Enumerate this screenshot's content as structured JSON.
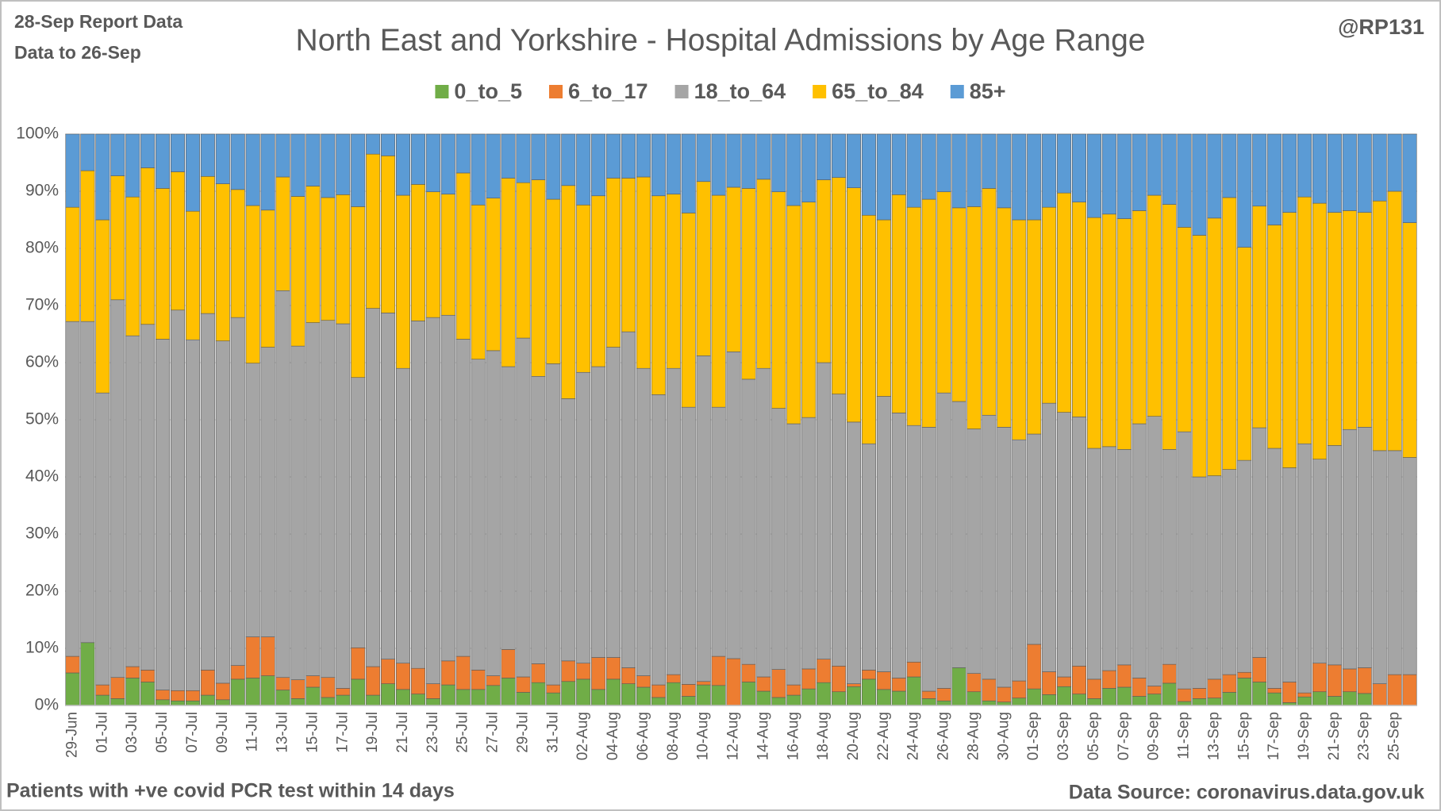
{
  "chart_data": {
    "type": "stacked_bar_100",
    "title": "North East and Yorkshire - Hospital Admissions by Age Range",
    "report_note": "28-Sep Report Data",
    "data_note": "Data to 26-Sep",
    "author": "@RP131",
    "footnote": "Patients with  +ve covid PCR test within 14 days",
    "source": "Data Source: coronavirus.data.gov.uk",
    "categories": [
      "29-Jun",
      null,
      "01-Jul",
      null,
      "03-Jul",
      null,
      "05-Jul",
      null,
      "07-Jul",
      null,
      "09-Jul",
      null,
      "11-Jul",
      null,
      "13-Jul",
      null,
      "15-Jul",
      null,
      "17-Jul",
      null,
      "19-Jul",
      null,
      "21-Jul",
      null,
      "23-Jul",
      null,
      "25-Jul",
      null,
      "27-Jul",
      null,
      "29-Jul",
      null,
      "31-Jul",
      null,
      "02-Aug",
      null,
      "04-Aug",
      null,
      "06-Aug",
      null,
      "08-Aug",
      null,
      "10-Aug",
      null,
      "12-Aug",
      null,
      "14-Aug",
      null,
      "16-Aug",
      null,
      "18-Aug",
      null,
      "20-Aug",
      null,
      "22-Aug",
      null,
      "24-Aug",
      null,
      "26-Aug",
      null,
      "28-Aug",
      null,
      "30-Aug",
      null,
      "01-Sep",
      null,
      "03-Sep",
      null,
      "05-Sep",
      null,
      "07-Sep",
      null,
      "09-Sep",
      null,
      "11-Sep",
      null,
      "13-Sep",
      null,
      "15-Sep",
      null,
      "17-Sep",
      null,
      "19-Sep",
      null,
      "21-Sep",
      null,
      "23-Sep",
      null,
      "25-Sep",
      null
    ],
    "series": [
      {
        "name": "0_to_5",
        "color": "#70ad47",
        "values": [
          5.7,
          11,
          1.8,
          1.2,
          4.8,
          4.1,
          1,
          0.8,
          0.8,
          1.8,
          1,
          4.6,
          4.8,
          5.2,
          2.7,
          1.2,
          3.2,
          1.4,
          1.8,
          4.6,
          1.8,
          3.8,
          2.8,
          2,
          1.2,
          3.6,
          2.8,
          2.8,
          3.5,
          4.8,
          2.3,
          4,
          2.2,
          4.2,
          4.6,
          2.8,
          4.6,
          3.8,
          3.2,
          1.4,
          4,
          1.6,
          3.6,
          3.5,
          0,
          4.1,
          2.5,
          1.4,
          1.8,
          2.9,
          4,
          2.4,
          3.3,
          4.6,
          2.8,
          2.5,
          5,
          1.2,
          0.8,
          6.6,
          2.4,
          0.8,
          0.6,
          1.3,
          2.9,
          1.9,
          3.3,
          2,
          1.2,
          3,
          3.2,
          1.6,
          2,
          3.9,
          0.7,
          1.2,
          1.3,
          2.3,
          4.8,
          4.1,
          2.2,
          0.5,
          1.5,
          2.4,
          1.6,
          2.4,
          2.1,
          0,
          0,
          0
        ]
      },
      {
        "name": "6_to_17",
        "color": "#ed7d31",
        "values": [
          2.9,
          0,
          1.8,
          3.7,
          2,
          2.1,
          1.7,
          1.8,
          1.8,
          4.4,
          2.9,
          2.4,
          7.2,
          6.8,
          2.2,
          3.3,
          2,
          3.5,
          1.2,
          5.5,
          5,
          4.3,
          4.6,
          4.5,
          2.6,
          4.2,
          5.8,
          3.4,
          1.7,
          5,
          2.7,
          3.3,
          1.4,
          3.6,
          2.8,
          5.6,
          3.8,
          2.8,
          2,
          2.2,
          1.4,
          2.1,
          0.6,
          5.1,
          8.2,
          3.1,
          2.5,
          4.9,
          1.8,
          3.5,
          4.1,
          4.5,
          0.5,
          1.6,
          3.1,
          2.3,
          2.6,
          1.3,
          2.2,
          0,
          3.2,
          3.8,
          2.6,
          3,
          7.8,
          4,
          1.7,
          4.9,
          3.4,
          3.1,
          3.9,
          3.2,
          1.4,
          3.3,
          2.2,
          1.8,
          3.3,
          3.1,
          1,
          4.3,
          0.8,
          3.6,
          0.7,
          5,
          5.5,
          4,
          4.5,
          3.8,
          5.4,
          5.4
        ]
      },
      {
        "name": "18_to_64",
        "color": "#a5a5a5",
        "values": [
          58.6,
          56.2,
          51.1,
          66.1,
          57.9,
          60.5,
          61.4,
          66.6,
          61.4,
          62.4,
          59.9,
          60.9,
          47.9,
          50.7,
          67.7,
          58.4,
          61.8,
          62.5,
          63.8,
          47.3,
          62.7,
          60.6,
          51.6,
          60.8,
          64.1,
          60.5,
          55.5,
          54.4,
          56.9,
          49.5,
          59.3,
          50.3,
          56.2,
          45.9,
          50.9,
          50.9,
          54.3,
          58.8,
          53.8,
          50.8,
          53.6,
          48.5,
          57,
          43.6,
          53.7,
          49.9,
          54,
          45.7,
          45.7,
          44,
          51.9,
          47.6,
          45.8,
          39.6,
          48.2,
          46.4,
          41.4,
          46.2,
          51.7,
          46.6,
          42.8,
          46.2,
          45.5,
          42.2,
          36.8,
          47,
          46.3,
          43.6,
          40.4,
          39.2,
          37.7,
          44.5,
          47.2,
          37.6,
          45,
          37,
          35.6,
          35.9,
          37.1,
          40.2,
          42,
          37.5,
          43.6,
          35.7,
          38.4,
          41.9,
          42.1,
          40.8,
          39.2,
          38
        ]
      },
      {
        "name": "65_to_84",
        "color": "#ffc000",
        "values": [
          20,
          26.4,
          30.3,
          21.7,
          24.3,
          27.4,
          26.4,
          24.2,
          22.5,
          24,
          27.5,
          22.4,
          27.6,
          24,
          19.9,
          26.2,
          23.9,
          21.5,
          22.6,
          29.9,
          27,
          27.5,
          30.3,
          23.9,
          22,
          21.2,
          29.1,
          27,
          26.7,
          33,
          27.2,
          34.4,
          28.8,
          37.3,
          29.3,
          29.9,
          29.6,
          26.9,
          33.5,
          34.8,
          30.5,
          34,
          30.5,
          37.1,
          28.8,
          33.4,
          33.1,
          37.9,
          38.2,
          37.7,
          32,
          37.9,
          41,
          40,
          30.9,
          38.2,
          38.2,
          39.9,
          35.2,
          33.9,
          38.9,
          39.7,
          38.4,
          38.5,
          37.5,
          34.3,
          38.4,
          37.6,
          40.4,
          40.7,
          40.4,
          37.3,
          38.7,
          42.9,
          35.8,
          42.3,
          45.1,
          47.6,
          37.3,
          38.8,
          39.1,
          44.7,
          43.2,
          44.8,
          40.8,
          38.3,
          37.6,
          43.7,
          45.4,
          41.1
        ]
      },
      {
        "name": "85+",
        "color": "#5b9bd5",
        "values": [
          12.8,
          6.4,
          15,
          7.3,
          11,
          5.9,
          9.5,
          6.6,
          13.5,
          7.4,
          8.7,
          9.7,
          12.5,
          13.3,
          7.5,
          10.9,
          9.1,
          11.1,
          10.6,
          12.7,
          3.5,
          3.8,
          10.7,
          8.8,
          10.1,
          10.5,
          6.8,
          12.4,
          11.2,
          7.7,
          8.5,
          8,
          11.4,
          9,
          12.4,
          10.8,
          7.7,
          7.7,
          7.5,
          10.8,
          10.5,
          13.8,
          8.3,
          10.7,
          9.3,
          9.5,
          7.9,
          10.1,
          12.5,
          11.9,
          8,
          7.6,
          9.4,
          14.2,
          15,
          10.6,
          12.8,
          11.4,
          10.1,
          12.9,
          12.7,
          9.5,
          12.9,
          15,
          15,
          12.8,
          10.3,
          11.9,
          14.6,
          14,
          14.8,
          13.4,
          10.7,
          12.3,
          16.3,
          17.7,
          14.7,
          11.1,
          19.8,
          12.6,
          15.9,
          13.7,
          11,
          12.1,
          13.7,
          13.4,
          13.7,
          11.7,
          10,
          15.5
        ]
      }
    ],
    "ylim": [
      0,
      100
    ],
    "yticks": [
      {
        "value": 0,
        "label": "0%"
      },
      {
        "value": 10,
        "label": "10%"
      },
      {
        "value": 20,
        "label": "20%"
      },
      {
        "value": 30,
        "label": "30%"
      },
      {
        "value": 40,
        "label": "40%"
      },
      {
        "value": 50,
        "label": "50%"
      },
      {
        "value": 60,
        "label": "60%"
      },
      {
        "value": 70,
        "label": "70%"
      },
      {
        "value": 80,
        "label": "80%"
      },
      {
        "value": 90,
        "label": "90%"
      },
      {
        "value": 100,
        "label": "100%"
      }
    ],
    "grid": true,
    "legend": "top"
  }
}
